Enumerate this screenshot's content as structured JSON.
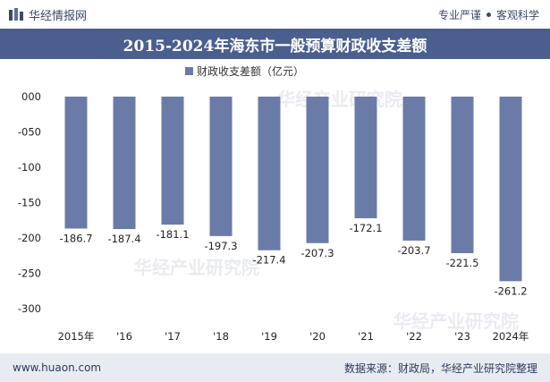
{
  "header": {
    "brand_name": "华经情报网",
    "tagline_left": "专业严谨",
    "tagline_right": "客观科学"
  },
  "footer": {
    "website": "www.huaon.com",
    "source": "数据来源：财政局，华经产业研究院整理"
  },
  "colors": {
    "bar": "#6b7ba8",
    "title_bg": "#4b5f8f",
    "footer_bg": "#e8ecf2"
  },
  "watermark": "华经产业研究院",
  "chart_data": {
    "type": "bar",
    "title": "2015-2024年海东市一般预算财政收支差额",
    "categories": [
      "2015年",
      "'16",
      "'17",
      "'18",
      "'19",
      "'20",
      "'21",
      "'22",
      "'23",
      "2024年"
    ],
    "series": [
      {
        "name": "财政收支差额（亿元）",
        "values": [
          -186.7,
          -187.4,
          -181.1,
          -197.3,
          -217.4,
          -207.3,
          -172.1,
          -203.7,
          -221.5,
          -261.2
        ],
        "labels": [
          "-186.7",
          "-187.4",
          "-181.1",
          "-197.3",
          "-217.4",
          "-207.3",
          "-172.1",
          "-203.7",
          "-221.5",
          "-261.2"
        ]
      }
    ],
    "yticks": [
      "000",
      "-050",
      "-100",
      "-150",
      "-200",
      "-250",
      "-300"
    ],
    "ylim": [
      -300,
      0
    ],
    "legend": "top-center",
    "grid": false
  }
}
